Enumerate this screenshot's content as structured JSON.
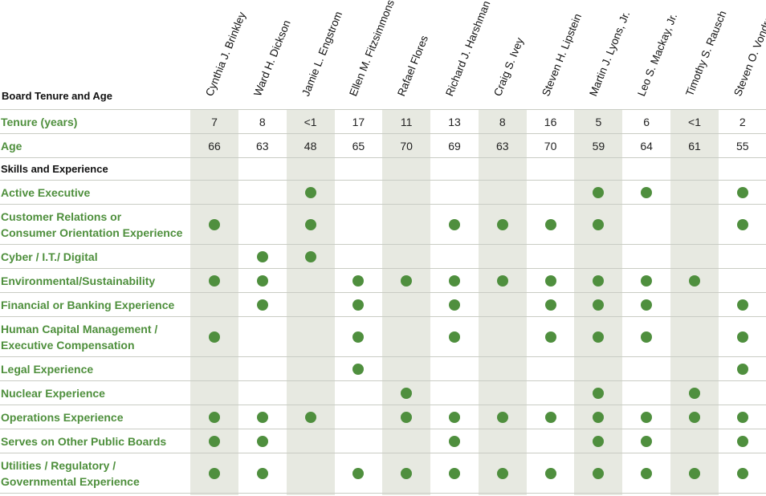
{
  "header_title": "Board Tenure and Age",
  "directors": [
    "Cynthia J. Brinkley",
    "Ward H. Dickson",
    "Jamie L. Engstrom",
    "Ellen M. Fitzsimmons",
    "Rafael Flores",
    "Richard J. Harshman",
    "Craig S. Ivey",
    "Steven H. Lipstein",
    "Martin J. Lyons, Jr.",
    "Leo S. Mackay, Jr.",
    "Timothy S. Rausch",
    "Steven O. Vondran"
  ],
  "tenure": {
    "label": "Tenure (years)",
    "values": [
      "7",
      "8",
      "<1",
      "17",
      "11",
      "13",
      "8",
      "16",
      "5",
      "6",
      "<1",
      "2"
    ]
  },
  "age": {
    "label": "Age",
    "values": [
      "66",
      "63",
      "48",
      "65",
      "70",
      "69",
      "63",
      "70",
      "59",
      "64",
      "61",
      "55"
    ]
  },
  "section_label": "Skills and Experience",
  "skills": [
    {
      "label": [
        "Active Executive"
      ],
      "marks": [
        0,
        0,
        1,
        0,
        0,
        0,
        0,
        0,
        1,
        1,
        0,
        1
      ]
    },
    {
      "label": [
        "Customer Relations or",
        "Consumer Orientation Experience"
      ],
      "marks": [
        1,
        0,
        1,
        0,
        0,
        1,
        1,
        1,
        1,
        0,
        0,
        1
      ]
    },
    {
      "label": [
        "Cyber / I.T./ Digital"
      ],
      "marks": [
        0,
        1,
        1,
        0,
        0,
        0,
        0,
        0,
        0,
        0,
        0,
        0
      ]
    },
    {
      "label": [
        "Environmental/Sustainability"
      ],
      "marks": [
        1,
        1,
        0,
        1,
        1,
        1,
        1,
        1,
        1,
        1,
        1,
        0
      ]
    },
    {
      "label": [
        "Financial or Banking Experience"
      ],
      "marks": [
        0,
        1,
        0,
        1,
        0,
        1,
        0,
        1,
        1,
        1,
        0,
        1
      ]
    },
    {
      "label": [
        "Human Capital Management /",
        "Executive Compensation"
      ],
      "marks": [
        1,
        0,
        0,
        1,
        0,
        1,
        0,
        1,
        1,
        1,
        0,
        1
      ]
    },
    {
      "label": [
        "Legal Experience"
      ],
      "marks": [
        0,
        0,
        0,
        1,
        0,
        0,
        0,
        0,
        0,
        0,
        0,
        1
      ]
    },
    {
      "label": [
        "Nuclear Experience"
      ],
      "marks": [
        0,
        0,
        0,
        0,
        1,
        0,
        0,
        0,
        1,
        0,
        1,
        0
      ]
    },
    {
      "label": [
        "Operations Experience"
      ],
      "marks": [
        1,
        1,
        1,
        0,
        1,
        1,
        1,
        1,
        1,
        1,
        1,
        1
      ]
    },
    {
      "label": [
        "Serves on Other Public Boards"
      ],
      "marks": [
        1,
        1,
        0,
        0,
        0,
        1,
        0,
        0,
        1,
        1,
        0,
        1
      ]
    },
    {
      "label": [
        "Utilities / Regulatory /",
        "Governmental Experience"
      ],
      "marks": [
        1,
        1,
        0,
        1,
        1,
        1,
        1,
        1,
        1,
        1,
        1,
        1
      ]
    }
  ],
  "colors": {
    "accent": "#4e8f3c",
    "dot": "#4f8f3e",
    "band": "#e7e9e1",
    "rule": "#c9ccc4"
  }
}
